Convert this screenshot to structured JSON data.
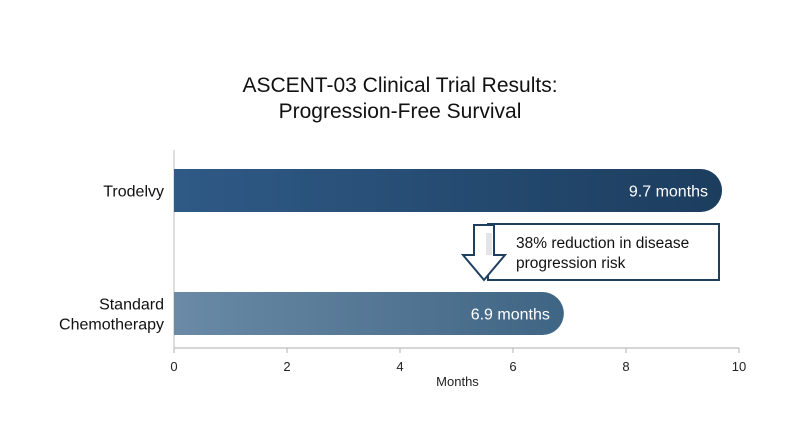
{
  "chart_data": {
    "type": "bar",
    "orientation": "horizontal",
    "title": [
      "ASCENT-03 Clinical Trial Results:",
      "Progression-Free Survival"
    ],
    "xlabel": "Months",
    "ylabel": "",
    "xlim": [
      0,
      10
    ],
    "xticks": [
      0,
      2,
      4,
      6,
      8,
      10
    ],
    "grid": false,
    "categories": [
      {
        "lines": [
          "Trodelvy"
        ]
      },
      {
        "lines": [
          "Standard",
          "Chemotherapy"
        ]
      }
    ],
    "values": [
      9.7,
      6.9
    ],
    "data_labels": [
      "9.7 months",
      "6.9 months"
    ],
    "colors": {
      "bar1_start": "#2f5a86",
      "bar1_end": "#1c3d5e",
      "bar2_start": "#6a8aa6",
      "bar2_end": "#3f6584",
      "callout_border": "#1f3f5e"
    },
    "annotation": {
      "lines": [
        "38% reduction in disease",
        "progression risk"
      ],
      "icon": "down-arrow-icon"
    }
  }
}
